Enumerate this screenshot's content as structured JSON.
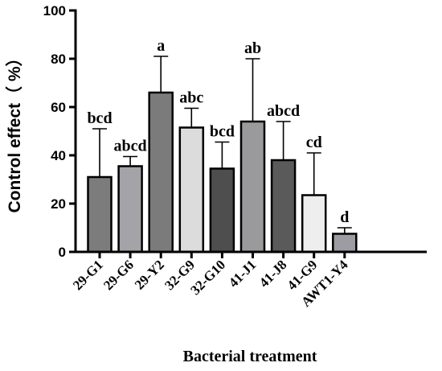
{
  "chart_data": {
    "type": "bar",
    "categories": [
      "29-G1",
      "29-G6",
      "29-Y2",
      "32-G9",
      "32-G10",
      "41-J1",
      "41-J8",
      "41-G9",
      "AWT1-Y4"
    ],
    "values": [
      31,
      35.5,
      66,
      51.5,
      34.5,
      54,
      38,
      23.5,
      7.5
    ],
    "error_upper": [
      51,
      39.5,
      81,
      59.5,
      45.5,
      80,
      54,
      41,
      10
    ],
    "significance": [
      "bcd",
      "abcd",
      "a",
      "abc",
      "bcd",
      "ab",
      "abcd",
      "cd",
      "d"
    ],
    "colors": [
      "#7c7c7c",
      "#a3a3a8",
      "#7b7b7b",
      "#dcdcdc",
      "#4e4e4e",
      "#9a9a9c",
      "#5a5a5a",
      "#eeeeee",
      "#9c9ca2"
    ],
    "xlabel": "Bacterial treatment",
    "ylabel": "Control effect（ %）",
    "ylim": [
      0,
      100
    ],
    "yticks": [
      0,
      20,
      40,
      60,
      80,
      100
    ],
    "grid": false
  }
}
